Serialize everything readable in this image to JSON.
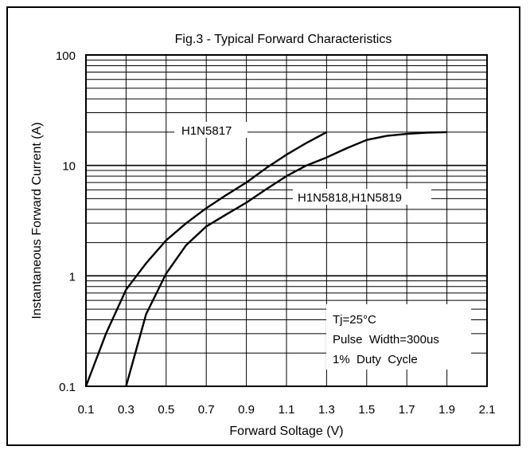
{
  "chart_data": {
    "type": "line",
    "title": "Fig.3 - Typical Forward Characteristics",
    "xlabel": "Forward Soltage (V)",
    "ylabel": "Instantaneous Forward Current (A)",
    "xlim": [
      0.1,
      2.1
    ],
    "ylim": [
      0.1,
      100
    ],
    "yscale": "log",
    "grid": true,
    "x_ticks": [
      "0.1",
      "0.3",
      "0.5",
      "0.7",
      "0.9",
      "1.1",
      "1.3",
      "1.5",
      "1.7",
      "1.9",
      "2.1"
    ],
    "y_ticks": [
      "0.1",
      "1",
      "10",
      "100"
    ],
    "series": [
      {
        "name": "H1N5817",
        "x": [
          0.1,
          0.2,
          0.3,
          0.4,
          0.5,
          0.6,
          0.7,
          0.8,
          0.9,
          1.0,
          1.1,
          1.2,
          1.3
        ],
        "y": [
          0.1,
          0.3,
          0.75,
          1.3,
          2.1,
          3.0,
          4.1,
          5.4,
          7.0,
          9.5,
          12.5,
          16.0,
          20.0
        ]
      },
      {
        "name": "H1N5818,H1N5819",
        "x": [
          0.3,
          0.4,
          0.5,
          0.6,
          0.7,
          0.8,
          0.9,
          1.0,
          1.1,
          1.2,
          1.3,
          1.4,
          1.5,
          1.6,
          1.7,
          1.8,
          1.9
        ],
        "y": [
          0.1,
          0.45,
          1.05,
          1.9,
          2.8,
          3.6,
          4.6,
          6.1,
          8.0,
          10.0,
          11.8,
          14.3,
          17.0,
          18.5,
          19.3,
          19.8,
          20.0
        ]
      }
    ],
    "annotations": [
      "Tj=25°C",
      "Pulse  Width=300us",
      "1%  Duty  Cycle"
    ]
  }
}
